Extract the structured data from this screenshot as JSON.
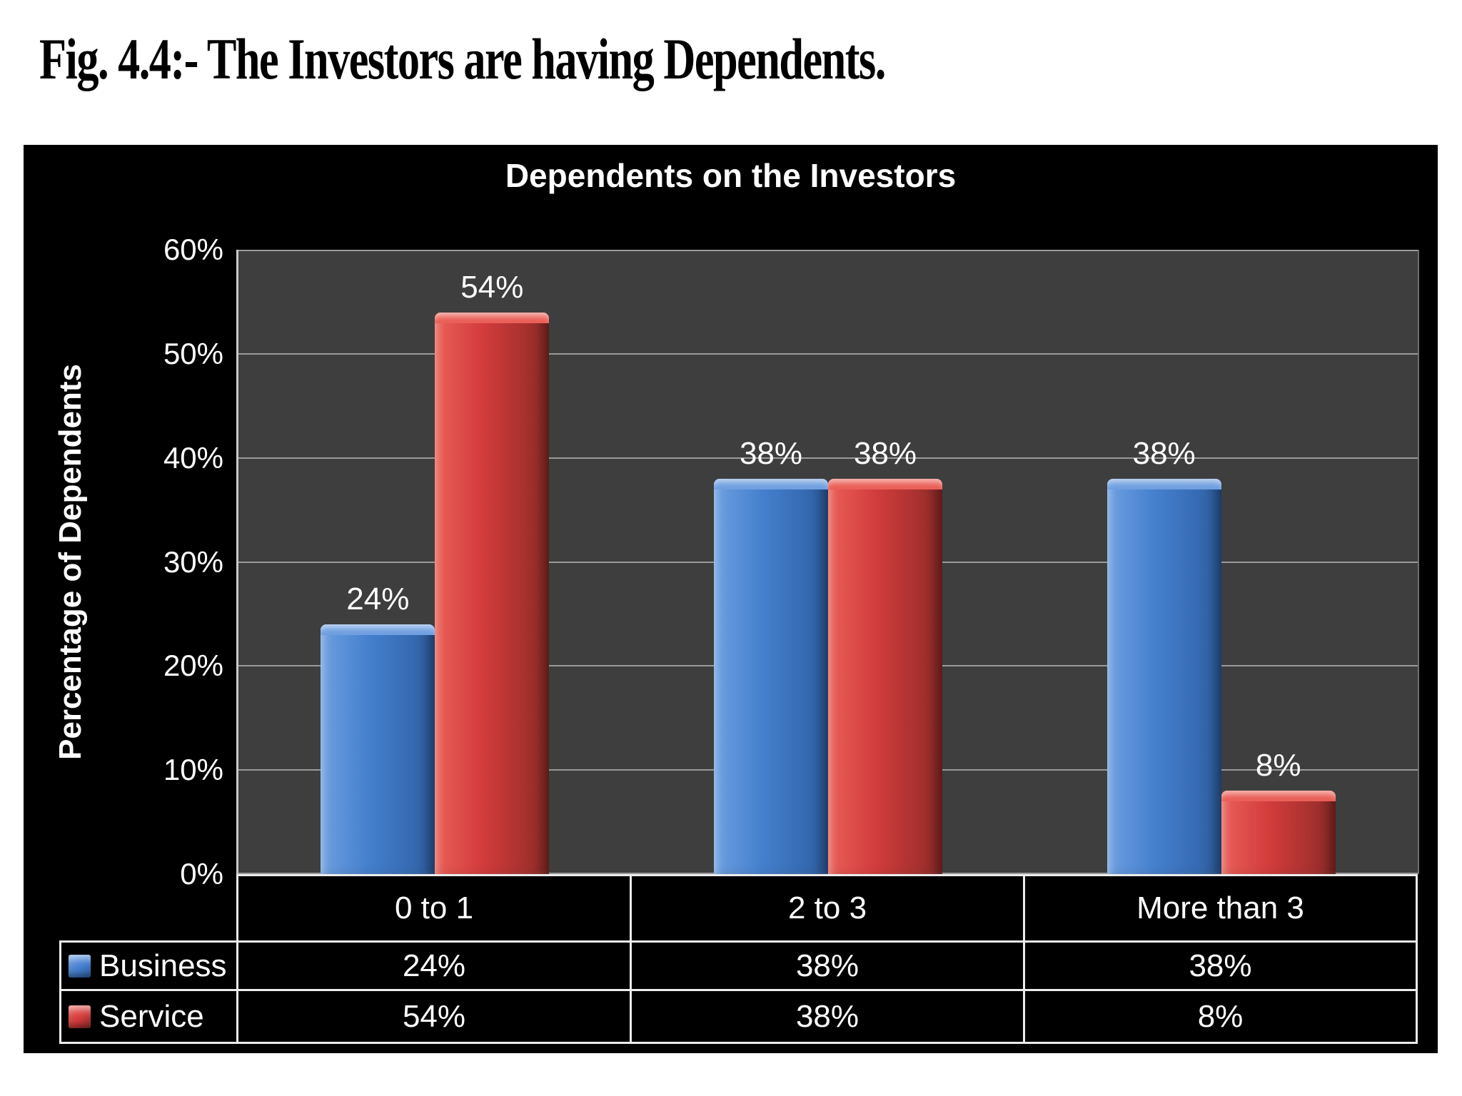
{
  "figure_title": "Fig. 4.4:- The Investors are having Dependents.",
  "chart_data": {
    "type": "bar",
    "title": "Dependents on the Investors",
    "ylabel": "Percentage of Dependents",
    "xlabel": "",
    "categories": [
      "0 to 1",
      "2 to 3",
      "More than 3"
    ],
    "series": [
      {
        "name": "Business",
        "values": [
          24,
          38,
          38
        ],
        "labels": [
          "24%",
          "38%",
          "38%"
        ],
        "color": "#4480ce",
        "color_light": "#6f9fe0",
        "color_dark": "#2f5fa3"
      },
      {
        "name": "Service",
        "values": [
          54,
          38,
          8
        ],
        "labels": [
          "54%",
          "38%",
          "8%"
        ],
        "color": "#d23c3c",
        "color_light": "#ea5f57",
        "color_dark": "#8f2b28"
      }
    ],
    "ylim": [
      0,
      60
    ],
    "yticks": [
      "0%",
      "10%",
      "20%",
      "30%",
      "40%",
      "50%",
      "60%"
    ],
    "grid": true,
    "legend_position": "table-left-bottom",
    "colors": {
      "page_bg": "#ffffff",
      "chart_bg": "#000000",
      "plot_bg": "#3e3e3e",
      "gridline": "#9a9a9a",
      "table_border": "#ececec",
      "chart_text": "#ffffff",
      "figure_title_text": "#000000"
    }
  }
}
